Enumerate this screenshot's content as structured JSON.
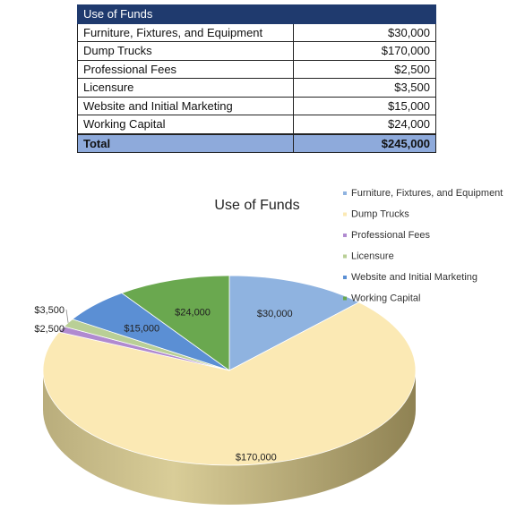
{
  "table": {
    "header": "Use of Funds",
    "rows": [
      {
        "label": "Furniture, Fixtures, and Equipment",
        "amount": "$30,000"
      },
      {
        "label": "Dump Trucks",
        "amount": "$170,000"
      },
      {
        "label": "Professional Fees",
        "amount": "$2,500"
      },
      {
        "label": "Licensure",
        "amount": "$3,500"
      },
      {
        "label": "Website and Initial Marketing",
        "amount": "$15,000"
      },
      {
        "label": "Working Capital",
        "amount": "$24,000"
      }
    ],
    "total": {
      "label": "Total",
      "amount": "$245,000"
    }
  },
  "chart_data": {
    "type": "pie",
    "title": "Use of Funds",
    "legend_position": "right",
    "categories": [
      "Furniture, Fixtures, and Equipment",
      "Dump Trucks",
      "Professional Fees",
      "Licensure",
      "Website and Initial Marketing",
      "Working Capital"
    ],
    "values": [
      30000,
      170000,
      2500,
      3500,
      15000,
      24000
    ],
    "data_labels": [
      "$30,000",
      "$170,000",
      "$2,500",
      "$3,500",
      "$15,000",
      "$24,000"
    ],
    "colors": [
      "#8fb3e0",
      "#fbe9b4",
      "#b08ad0",
      "#b9cf96",
      "#5b8fd4",
      "#6aa84f"
    ]
  }
}
